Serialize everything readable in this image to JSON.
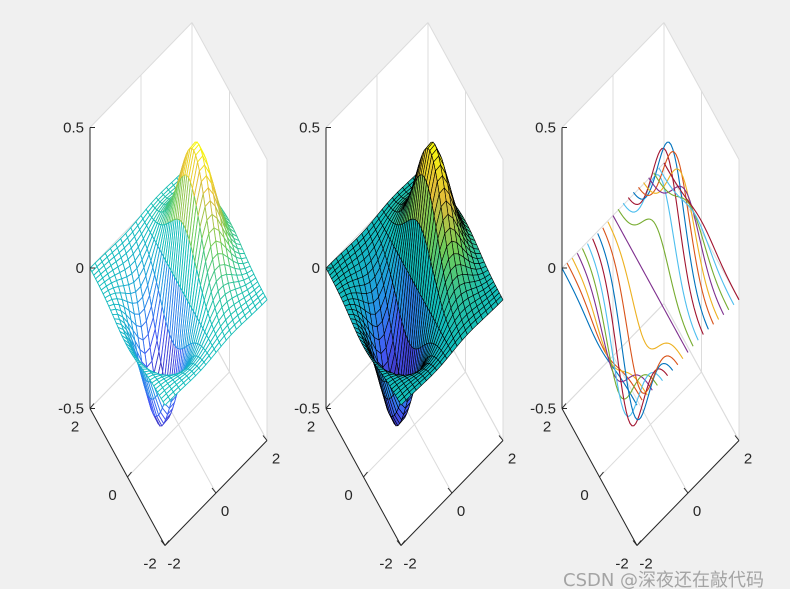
{
  "chart_data": [
    {
      "type": "mesh",
      "title": "",
      "z_formula": "x.*exp(-x.^2-y.^2)",
      "x_range": [
        -2,
        2
      ],
      "x_step": 0.2,
      "y_range": [
        -2,
        2
      ],
      "y_step": 0.1,
      "xlim": [
        -2,
        2
      ],
      "ylim": [
        -2,
        2
      ],
      "zlim": [
        -0.5,
        0.5
      ],
      "xticks": [
        "-2",
        "0",
        "2"
      ],
      "yticks": [
        "2",
        "0",
        "-2"
      ],
      "zticks": [
        "0.5",
        "0",
        "-0.5"
      ],
      "colormap": "parula",
      "grid": true
    },
    {
      "type": "surface",
      "title": "",
      "z_formula": "x.*exp(-x.^2-y.^2)",
      "x_range": [
        -2,
        2
      ],
      "x_step": 0.2,
      "y_range": [
        -2,
        2
      ],
      "y_step": 0.1,
      "xlim": [
        -2,
        2
      ],
      "ylim": [
        -2,
        2
      ],
      "zlim": [
        -0.5,
        0.5
      ],
      "xticks": [
        "-2",
        "0",
        "2"
      ],
      "yticks": [
        "2",
        "0",
        "-2"
      ],
      "zticks": [
        "0.5",
        "0",
        "-0.5"
      ],
      "colormap": "parula",
      "edge_color": "#000000",
      "grid": true
    },
    {
      "type": "line3",
      "title": "",
      "z_formula": "x.*exp(-x.^2-y.^2)",
      "x_range": [
        -2,
        2
      ],
      "x_step": 0.2,
      "y_range": [
        -2,
        2
      ],
      "y_step": 0.1,
      "xlim": [
        -2,
        2
      ],
      "ylim": [
        -2,
        2
      ],
      "zlim": [
        -0.5,
        0.5
      ],
      "xticks": [
        "-2",
        "0",
        "2"
      ],
      "yticks": [
        "2",
        "0",
        "-2"
      ],
      "zticks": [
        "0.5",
        "0",
        "-0.5"
      ],
      "color_order": [
        "#0072bd",
        "#d95319",
        "#edb120",
        "#7e2f8e",
        "#77ac30",
        "#4dbeee",
        "#a2142f"
      ],
      "grid": true
    }
  ],
  "watermark": "CSDN @深夜还在敲代码"
}
